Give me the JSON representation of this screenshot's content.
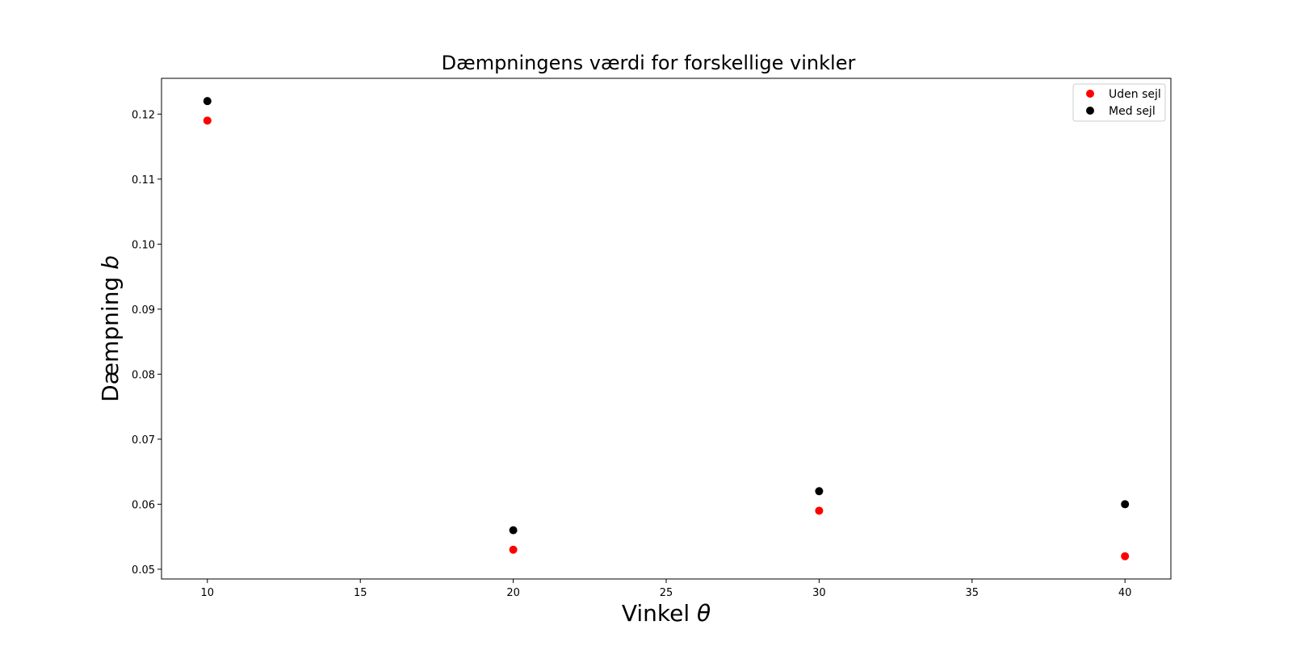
{
  "chart_data": {
    "type": "scatter",
    "title": "Dæmpningens værdi for forskellige vinkler",
    "xlabel": "Vinkel",
    "xlabel_symbol": "θ",
    "ylabel": "Dæmpning",
    "ylabel_symbol": "b",
    "xlim": [
      8.5,
      41.5
    ],
    "ylim": [
      0.0485,
      0.1255
    ],
    "x_ticks": [
      10,
      15,
      20,
      25,
      30,
      35,
      40
    ],
    "y_ticks": [
      0.05,
      0.06,
      0.07,
      0.08,
      0.09,
      0.1,
      0.11,
      0.12
    ],
    "y_tick_labels": [
      "0.05",
      "0.06",
      "0.07",
      "0.08",
      "0.09",
      "0.10",
      "0.11",
      "0.12"
    ],
    "grid": false,
    "legend_position": "top-right",
    "series": [
      {
        "name": "Uden sejl",
        "color": "#ff0000",
        "x": [
          10,
          20,
          30,
          40
        ],
        "y": [
          0.119,
          0.053,
          0.059,
          0.052
        ]
      },
      {
        "name": "Med sejl",
        "color": "#000000",
        "x": [
          10,
          20,
          30,
          40
        ],
        "y": [
          0.122,
          0.056,
          0.062,
          0.06
        ]
      }
    ]
  }
}
